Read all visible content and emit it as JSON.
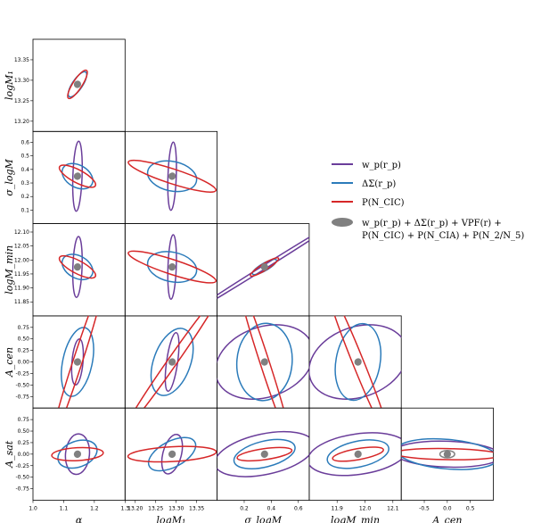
{
  "chart_data": {
    "type": "scatter",
    "title": "",
    "params": [
      {
        "name": "alpha",
        "label": "α",
        "range": [
          1.0,
          1.3
        ],
        "ticks": [
          "1.0",
          "1.1",
          "1.2",
          "1.3"
        ],
        "tick_values": [
          1.0,
          1.1,
          1.2,
          1.3
        ],
        "center": 1.145
      },
      {
        "name": "logM1",
        "label": "logM₁",
        "range": [
          13.175,
          13.4
        ],
        "ticks": [
          "13.20",
          "13.25",
          "13.30",
          "13.35"
        ],
        "tick_values": [
          13.2,
          13.25,
          13.3,
          13.35
        ],
        "center": 13.29
      },
      {
        "name": "sigma_logM",
        "label": "σ_logM",
        "range": [
          0.0,
          0.68
        ],
        "ticks": [
          "0.1",
          "0.2",
          "0.3",
          "0.4",
          "0.5",
          "0.6"
        ],
        "tick_values": [
          0.1,
          0.2,
          0.3,
          0.4,
          0.5,
          0.6
        ],
        "center": 0.35
      },
      {
        "name": "logMmin",
        "label": "logM_min",
        "range": [
          11.8,
          12.13
        ],
        "ticks": [
          "11.85",
          "11.90",
          "11.95",
          "12.00",
          "12.05",
          "12.10"
        ],
        "tick_values": [
          11.85,
          11.9,
          11.95,
          12.0,
          12.05,
          12.1
        ],
        "center": 11.975
      },
      {
        "name": "Acen",
        "label": "A_cen",
        "range": [
          -1.0,
          1.0
        ],
        "ticks": [
          "-0.75",
          "-0.50",
          "-0.25",
          "0.00",
          "0.25",
          "0.50",
          "0.75"
        ],
        "tick_values": [
          -0.75,
          -0.5,
          -0.25,
          0.0,
          0.25,
          0.5,
          0.75
        ],
        "center": 0.0
      },
      {
        "name": "Asat",
        "label": "A_sat",
        "range": [
          -1.0,
          1.0
        ],
        "ticks": [
          "-0.75",
          "-0.50",
          "-0.25",
          "0.00",
          "0.25",
          "0.50",
          "0.75"
        ],
        "tick_values": [
          -0.75,
          -0.5,
          -0.25,
          0.0,
          0.25,
          0.5,
          0.75
        ],
        "center": 0.0
      }
    ],
    "x_tick_labels_bottom": {
      "alpha": [
        "1.0",
        "1.1",
        "1.2",
        "1.3"
      ],
      "logM1": [
        "13.20",
        "13.25",
        "13.30",
        "13.35"
      ],
      "sigma_logM": [
        "0.2",
        "0.4",
        "0.6"
      ],
      "logMmin": [
        "11.9",
        "12.0",
        "12.1"
      ],
      "Acen": [
        "-0.5",
        "0.0",
        "0.5"
      ]
    },
    "x_tick_values_bottom": {
      "alpha": [
        1.0,
        1.1,
        1.2,
        1.3
      ],
      "logM1": [
        13.2,
        13.25,
        13.3,
        13.35
      ],
      "sigma_logM": [
        0.2,
        0.4,
        0.6
      ],
      "logMmin": [
        11.9,
        12.0,
        12.1
      ],
      "Acen": [
        -0.5,
        0.0,
        0.5
      ]
    },
    "y_tick_labels_left": {
      "logM1": [
        "13.20",
        "13.25",
        "13.30",
        "13.35"
      ],
      "sigma_logM": [
        "0.1",
        "0.2",
        "0.3",
        "0.4",
        "0.5",
        "0.6"
      ],
      "logMmin": [
        "11.85",
        "11.90",
        "11.95",
        "12.00",
        "12.05",
        "12.10"
      ],
      "Acen": [
        "-0.75",
        "-0.50",
        "-0.25",
        "0.00",
        "0.25",
        "0.50",
        "0.75"
      ],
      "Asat": [
        "-0.75",
        "-0.50",
        "-0.25",
        "0.00",
        "0.25",
        "0.50",
        "0.75"
      ]
    },
    "series": [
      {
        "name": "w_p(r_p)",
        "color": "#6a3d9a"
      },
      {
        "name": "ΔΣ(r_p)",
        "color": "#2b7bba"
      },
      {
        "name": "P(N_CIC)",
        "color": "#d62728"
      },
      {
        "name": "w_p(r_p) + ΔΣ(r_p) + VPF(r) + P(N_CIC) + P(N_CIA) + P(N_2/N_5)",
        "color": "#808080"
      }
    ],
    "ellipses": [
      {
        "row": 1,
        "col": 0,
        "series": 0,
        "a": 0.02,
        "b": 0.018,
        "angle_deg": 45
      },
      {
        "row": 1,
        "col": 0,
        "series": 1,
        "a": 0.16,
        "b": 0.055,
        "angle_deg": 56
      },
      {
        "row": 1,
        "col": 0,
        "series": 2,
        "a": 0.18,
        "b": 0.05,
        "angle_deg": 57
      },
      {
        "row": 2,
        "col": 0,
        "series": 0,
        "a": 0.38,
        "b": 0.05,
        "angle_deg": 88
      },
      {
        "row": 2,
        "col": 0,
        "series": 1,
        "a": 0.18,
        "b": 0.12,
        "angle_deg": -30
      },
      {
        "row": 2,
        "col": 0,
        "series": 2,
        "a": 0.22,
        "b": 0.07,
        "angle_deg": -28
      },
      {
        "row": 2,
        "col": 1,
        "series": 0,
        "a": 0.37,
        "b": 0.045,
        "angle_deg": 88
      },
      {
        "row": 2,
        "col": 1,
        "series": 1,
        "a": 0.27,
        "b": 0.16,
        "angle_deg": -12
      },
      {
        "row": 2,
        "col": 1,
        "series": 2,
        "a": 0.5,
        "b": 0.08,
        "angle_deg": -18
      },
      {
        "row": 3,
        "col": 0,
        "series": 0,
        "a": 0.33,
        "b": 0.05,
        "angle_deg": 88
      },
      {
        "row": 3,
        "col": 0,
        "series": 1,
        "a": 0.18,
        "b": 0.12,
        "angle_deg": -30
      },
      {
        "row": 3,
        "col": 0,
        "series": 2,
        "a": 0.22,
        "b": 0.07,
        "angle_deg": -28
      },
      {
        "row": 3,
        "col": 1,
        "series": 0,
        "a": 0.35,
        "b": 0.045,
        "angle_deg": 88
      },
      {
        "row": 3,
        "col": 1,
        "series": 1,
        "a": 0.27,
        "b": 0.16,
        "angle_deg": -12
      },
      {
        "row": 3,
        "col": 1,
        "series": 2,
        "a": 0.5,
        "b": 0.08,
        "angle_deg": -18
      },
      {
        "row": 3,
        "col": 2,
        "series": 0,
        "a": 0.9,
        "b": 0.02,
        "angle_deg": 32
      },
      {
        "row": 3,
        "col": 2,
        "series": 1,
        "a": 0.15,
        "b": 0.04,
        "angle_deg": 30
      },
      {
        "row": 3,
        "col": 2,
        "series": 2,
        "a": 0.18,
        "b": 0.035,
        "angle_deg": 32
      },
      {
        "row": 4,
        "col": 0,
        "series": 0,
        "a": 0.25,
        "b": 0.06,
        "angle_deg": 85
      },
      {
        "row": 4,
        "col": 0,
        "series": 1,
        "a": 0.38,
        "b": 0.16,
        "angle_deg": 78
      },
      {
        "row": 4,
        "col": 0,
        "series": 2,
        "a": 0.9,
        "b": 0.05,
        "angle_deg": 72
      },
      {
        "row": 4,
        "col": 1,
        "series": 0,
        "a": 0.32,
        "b": 0.06,
        "angle_deg": 82
      },
      {
        "row": 4,
        "col": 1,
        "series": 1,
        "a": 0.38,
        "b": 0.2,
        "angle_deg": 70
      },
      {
        "row": 4,
        "col": 1,
        "series": 2,
        "a": 0.9,
        "b": 0.05,
        "angle_deg": 55
      },
      {
        "row": 4,
        "col": 2,
        "series": 0,
        "a": 0.55,
        "b": 0.38,
        "angle_deg": 20
      },
      {
        "row": 4,
        "col": 2,
        "series": 1,
        "a": 0.42,
        "b": 0.3,
        "angle_deg": 85
      },
      {
        "row": 4,
        "col": 2,
        "series": 2,
        "a": 0.9,
        "b": 0.05,
        "angle_deg": -72
      },
      {
        "row": 4,
        "col": 3,
        "series": 0,
        "a": 0.55,
        "b": 0.38,
        "angle_deg": 20
      },
      {
        "row": 4,
        "col": 3,
        "series": 1,
        "a": 0.42,
        "b": 0.24,
        "angle_deg": 80
      },
      {
        "row": 4,
        "col": 3,
        "series": 2,
        "a": 0.9,
        "b": 0.06,
        "angle_deg": -68
      },
      {
        "row": 5,
        "col": 0,
        "series": 0,
        "a": 0.22,
        "b": 0.13,
        "angle_deg": 85
      },
      {
        "row": 5,
        "col": 0,
        "series": 1,
        "a": 0.22,
        "b": 0.14,
        "angle_deg": 20
      },
      {
        "row": 5,
        "col": 0,
        "series": 2,
        "a": 0.28,
        "b": 0.07,
        "angle_deg": 3
      },
      {
        "row": 5,
        "col": 1,
        "series": 0,
        "a": 0.22,
        "b": 0.1,
        "angle_deg": 75
      },
      {
        "row": 5,
        "col": 1,
        "series": 1,
        "a": 0.28,
        "b": 0.14,
        "angle_deg": 28
      },
      {
        "row": 5,
        "col": 1,
        "series": 2,
        "a": 0.48,
        "b": 0.08,
        "angle_deg": 3
      },
      {
        "row": 5,
        "col": 2,
        "series": 0,
        "a": 0.55,
        "b": 0.22,
        "angle_deg": 12
      },
      {
        "row": 5,
        "col": 2,
        "series": 1,
        "a": 0.34,
        "b": 0.14,
        "angle_deg": 14
      },
      {
        "row": 5,
        "col": 2,
        "series": 2,
        "a": 0.3,
        "b": 0.06,
        "angle_deg": 8
      },
      {
        "row": 5,
        "col": 3,
        "series": 0,
        "a": 0.55,
        "b": 0.22,
        "angle_deg": 8
      },
      {
        "row": 5,
        "col": 3,
        "series": 1,
        "a": 0.34,
        "b": 0.14,
        "angle_deg": 12
      },
      {
        "row": 5,
        "col": 3,
        "series": 2,
        "a": 0.28,
        "b": 0.06,
        "angle_deg": 10
      },
      {
        "row": 5,
        "col": 4,
        "series": 0,
        "a": 0.58,
        "b": 0.14,
        "angle_deg": -2
      },
      {
        "row": 5,
        "col": 4,
        "series": 1,
        "a": 0.55,
        "b": 0.16,
        "angle_deg": -5
      },
      {
        "row": 5,
        "col": 4,
        "series": 2,
        "a": 0.58,
        "b": 0.06,
        "angle_deg": -1
      },
      {
        "row": 5,
        "col": 4,
        "series": 3,
        "a": 0.08,
        "b": 0.04,
        "angle_deg": 0
      }
    ],
    "filled_center_size": {
      "a": 0.045,
      "b": 0.03
    },
    "legend_placement": "right",
    "legend_lines": [
      "w_p(r_p) + ΔΣ(r_p) + VPF(r) +",
      "P(N_CIC) + P(N_CIA) + P(N_2/N_5)"
    ]
  }
}
